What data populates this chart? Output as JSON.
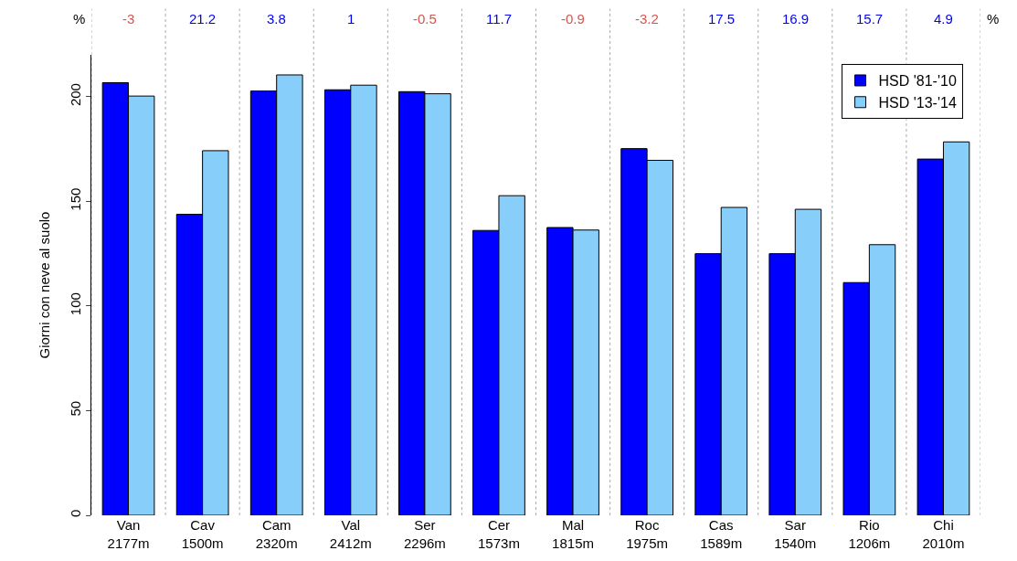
{
  "chart_data": {
    "type": "bar",
    "ylabel": "Giorni con neve al suolo",
    "categories": [
      "Van\n2177m",
      "Cav\n1500m",
      "Cam\n2320m",
      "Val\n2412m",
      "Ser\n2296m",
      "Cer\n1573m",
      "Mal\n1815m",
      "Roc\n1975m",
      "Cas\n1589m",
      "Sar\n1540m",
      "Rio\n1206m",
      "Chi\n2010m"
    ],
    "series": [
      {
        "name": "HSD '81-'10",
        "color": "#0000ff",
        "values": [
          206.7,
          143.8,
          202.7,
          203.3,
          202.4,
          136.1,
          137.5,
          175.2,
          125.0,
          125.0,
          111.2,
          170.2
        ]
      },
      {
        "name": "HSD '13-'14",
        "color": "#87cefa",
        "values": [
          200.3,
          174.2,
          210.4,
          205.5,
          201.4,
          152.7,
          136.3,
          169.6,
          147.1,
          146.2,
          129.3,
          178.4
        ]
      }
    ],
    "annotations": [
      "%",
      "-3",
      "21.2",
      "3.8",
      "1",
      "-0.5",
      "11.7",
      "-0.9",
      "-3.2",
      "17.5",
      "16.9",
      "15.7",
      "4.9",
      "%"
    ],
    "ylim": [
      0,
      220
    ],
    "yticks": [
      0,
      50,
      100,
      150,
      200
    ],
    "grid": "x",
    "legend": "top right"
  }
}
